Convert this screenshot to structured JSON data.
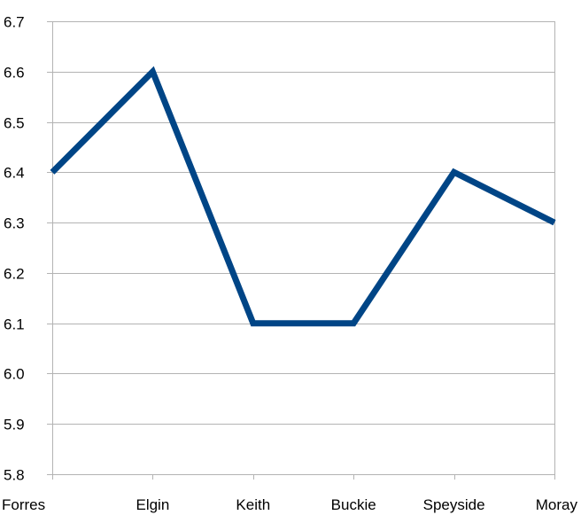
{
  "chart_data": {
    "type": "line",
    "title": "",
    "xlabel": "",
    "ylabel": "",
    "categories": [
      "Forres",
      "Elgin",
      "Keith",
      "Buckie",
      "Speyside",
      "Moray"
    ],
    "series": [
      {
        "values": [
          6.4,
          6.6,
          6.1,
          6.1,
          6.4,
          6.3
        ]
      }
    ],
    "ylim": [
      5.8,
      6.7
    ],
    "yticks": [
      "5.8",
      "5.9",
      "6.0",
      "6.1",
      "6.2",
      "6.3",
      "6.4",
      "6.5",
      "6.6",
      "6.7"
    ],
    "grid": true,
    "legend": "none",
    "colors": {
      "series": "#004586",
      "grid": "#b3b3b3",
      "text": "#000000"
    }
  }
}
